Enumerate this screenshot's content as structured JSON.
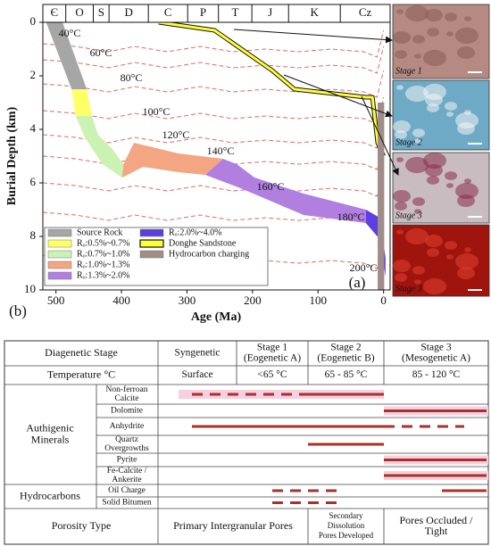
{
  "panel_a_label": "(a)",
  "panel_b_label": "(b)",
  "chart_data": {
    "type": "area",
    "xlabel": "Age (Ma)",
    "ylabel": "Burial Depth (km)",
    "xlim": [
      520,
      -10
    ],
    "ylim": [
      0,
      10
    ],
    "xticks": [
      500,
      400,
      300,
      200,
      100,
      0
    ],
    "yticks": [
      0,
      2,
      4,
      6,
      8,
      10
    ],
    "legend": "lower left",
    "periods": {
      "names": [
        "Є",
        "O",
        "S",
        "D",
        "C",
        "P",
        "T",
        "J",
        "K",
        "Cz"
      ],
      "boundaries": [
        485,
        443,
        419,
        359,
        299,
        252,
        201,
        145,
        66
      ]
    },
    "series": [
      {
        "name": "Source Rock",
        "kind": "area",
        "color": "#a6a6a6",
        "x": [
          515,
          490,
          453,
          476
        ],
        "y": [
          0,
          0,
          2.5,
          2.5
        ]
      },
      {
        "name": "Rₒ:0.5%~0.7%",
        "kind": "area",
        "color": "#ffff66",
        "x": [
          476,
          453,
          445,
          470
        ],
        "y": [
          2.5,
          2.5,
          3.5,
          3.5
        ]
      },
      {
        "name": "Rₒ:0.7%~1.0%",
        "kind": "area",
        "color": "#ccf2b3",
        "x": [
          470,
          445,
          436,
          415,
          397,
          399,
          429,
          456
        ],
        "y": [
          3.5,
          3.5,
          4.2,
          4.7,
          5.3,
          5.8,
          5.3,
          4.3
        ]
      },
      {
        "name": "Rₒ:1.0%~1.3%",
        "kind": "area",
        "color": "#f4a582",
        "x": [
          397,
          381,
          313,
          245,
          272,
          313,
          367,
          399
        ],
        "y": [
          5.3,
          4.5,
          4.9,
          5.1,
          5.7,
          5.6,
          5.4,
          5.8
        ]
      },
      {
        "name": "Rₒ:1.3%~2.0%",
        "kind": "area",
        "color": "#b07fe0",
        "x": [
          245,
          224,
          197,
          122,
          27,
          27,
          122,
          218,
          272
        ],
        "y": [
          5.1,
          5.3,
          5.8,
          6.4,
          7.0,
          7.5,
          7.2,
          6.2,
          5.7
        ]
      },
      {
        "name": "Rₒ:2.0%~4.0%",
        "kind": "area",
        "color": "#5b3fe0",
        "x": [
          27,
          6,
          -3,
          -3,
          6,
          27
        ],
        "y": [
          7.0,
          7.3,
          8.8,
          9.5,
          8.1,
          7.5
        ]
      },
      {
        "name": "Donghe Sandstone",
        "kind": "line",
        "color": "#ffff33",
        "x": [
          343,
          258,
          170,
          136,
          27,
          17,
          9,
          0
        ],
        "y": [
          0,
          0.3,
          1.8,
          2.5,
          2.8,
          2.8,
          4.5,
          5.0
        ]
      },
      {
        "name": "Hydrocarbon charging",
        "kind": "area",
        "color": "#a08c88",
        "x": [
          9,
          -1,
          -1,
          9
        ],
        "y": [
          3.0,
          3.0,
          10,
          10
        ]
      }
    ],
    "isotherms": {
      "color": "#e06a6a",
      "x": [
        520,
        470,
        420,
        380,
        330,
        280,
        230,
        180,
        130,
        80,
        30,
        10,
        0
      ],
      "series": [
        {
          "name": "40°C",
          "values": [
            0.8,
            0.9,
            1.1,
            0.9,
            1.1,
            0.9,
            1.1,
            1.0,
            1.1,
            1.0,
            1.1,
            1.3,
            0.3
          ]
        },
        {
          "name": "60°C",
          "values": [
            1.4,
            1.5,
            1.7,
            1.5,
            1.7,
            1.5,
            1.7,
            1.6,
            1.7,
            1.6,
            1.7,
            1.9,
            0.9
          ]
        },
        {
          "name": "80°C",
          "values": [
            2.3,
            2.4,
            2.6,
            2.4,
            2.6,
            2.4,
            2.6,
            2.5,
            2.6,
            2.5,
            2.6,
            2.8,
            1.8
          ]
        },
        {
          "name": "100°C",
          "values": [
            3.3,
            3.4,
            3.6,
            3.4,
            3.6,
            3.4,
            3.6,
            3.5,
            3.6,
            3.5,
            3.6,
            3.8,
            2.8
          ]
        },
        {
          "name": "120°C",
          "values": [
            4.2,
            4.3,
            4.5,
            4.3,
            4.5,
            4.3,
            4.5,
            4.4,
            4.5,
            4.4,
            4.5,
            4.7,
            3.7
          ]
        },
        {
          "name": "140°C",
          "values": [
            5.0,
            5.1,
            5.3,
            5.1,
            5.3,
            5.1,
            5.3,
            5.2,
            5.3,
            5.2,
            5.3,
            5.5,
            4.5
          ]
        },
        {
          "name": "160°C",
          "values": [
            6.0,
            6.1,
            6.3,
            6.1,
            6.3,
            6.1,
            6.3,
            6.2,
            6.3,
            6.2,
            6.3,
            6.5,
            5.5
          ]
        },
        {
          "name": "180°C",
          "values": [
            7.1,
            7.2,
            7.4,
            7.2,
            7.4,
            7.2,
            7.4,
            7.3,
            7.4,
            7.3,
            7.4,
            7.6,
            6.6
          ]
        },
        {
          "name": "200°C",
          "values": [
            8.7,
            8.8,
            9.0,
            8.8,
            9.0,
            8.8,
            9.0,
            8.9,
            9.0,
            8.9,
            9.0,
            9.2,
            8.2
          ]
        }
      ]
    }
  },
  "micrographs": [
    "Stage 1",
    "Stage 2",
    "Stage 3",
    "Stage 3"
  ],
  "table": {
    "header": {
      "label": "Diagenetic Stage",
      "stages": [
        [
          "Syngenetic"
        ],
        [
          "Stage 1",
          "(Eogenetic A)"
        ],
        [
          "Stage 2",
          "(Eogenetic B)"
        ],
        [
          "Stage 3",
          "(Mesogenetic A)"
        ]
      ]
    },
    "temperature": {
      "label": "Temperature °C",
      "values": [
        "Surface",
        "<65 °C",
        "65 - 85 °C",
        "85 - 120 °C"
      ]
    },
    "groups": [
      {
        "label": [
          "Authigenic",
          "Minerals"
        ],
        "items": [
          [
            "Non-ferroan",
            "Calcite"
          ],
          [
            "Dolomite"
          ],
          [
            "Anhydrite"
          ],
          [
            "Quartz",
            "Overgrowths"
          ],
          [
            "Pyrite"
          ],
          [
            "Fe-Calcite /",
            "Ankerite"
          ]
        ]
      },
      {
        "label": [
          "Hydrocarbons"
        ],
        "items": [
          [
            "Oil Charge"
          ],
          [
            "Solid Bitumen"
          ]
        ]
      }
    ],
    "porosity": {
      "label": "Porosity Type",
      "values": [
        [
          "Primary Intergranular Pores"
        ],
        [
          "Secondary",
          "Dissolution",
          "Pores Developed"
        ],
        [
          "Pores Occluded /",
          "Tight"
        ]
      ]
    }
  }
}
